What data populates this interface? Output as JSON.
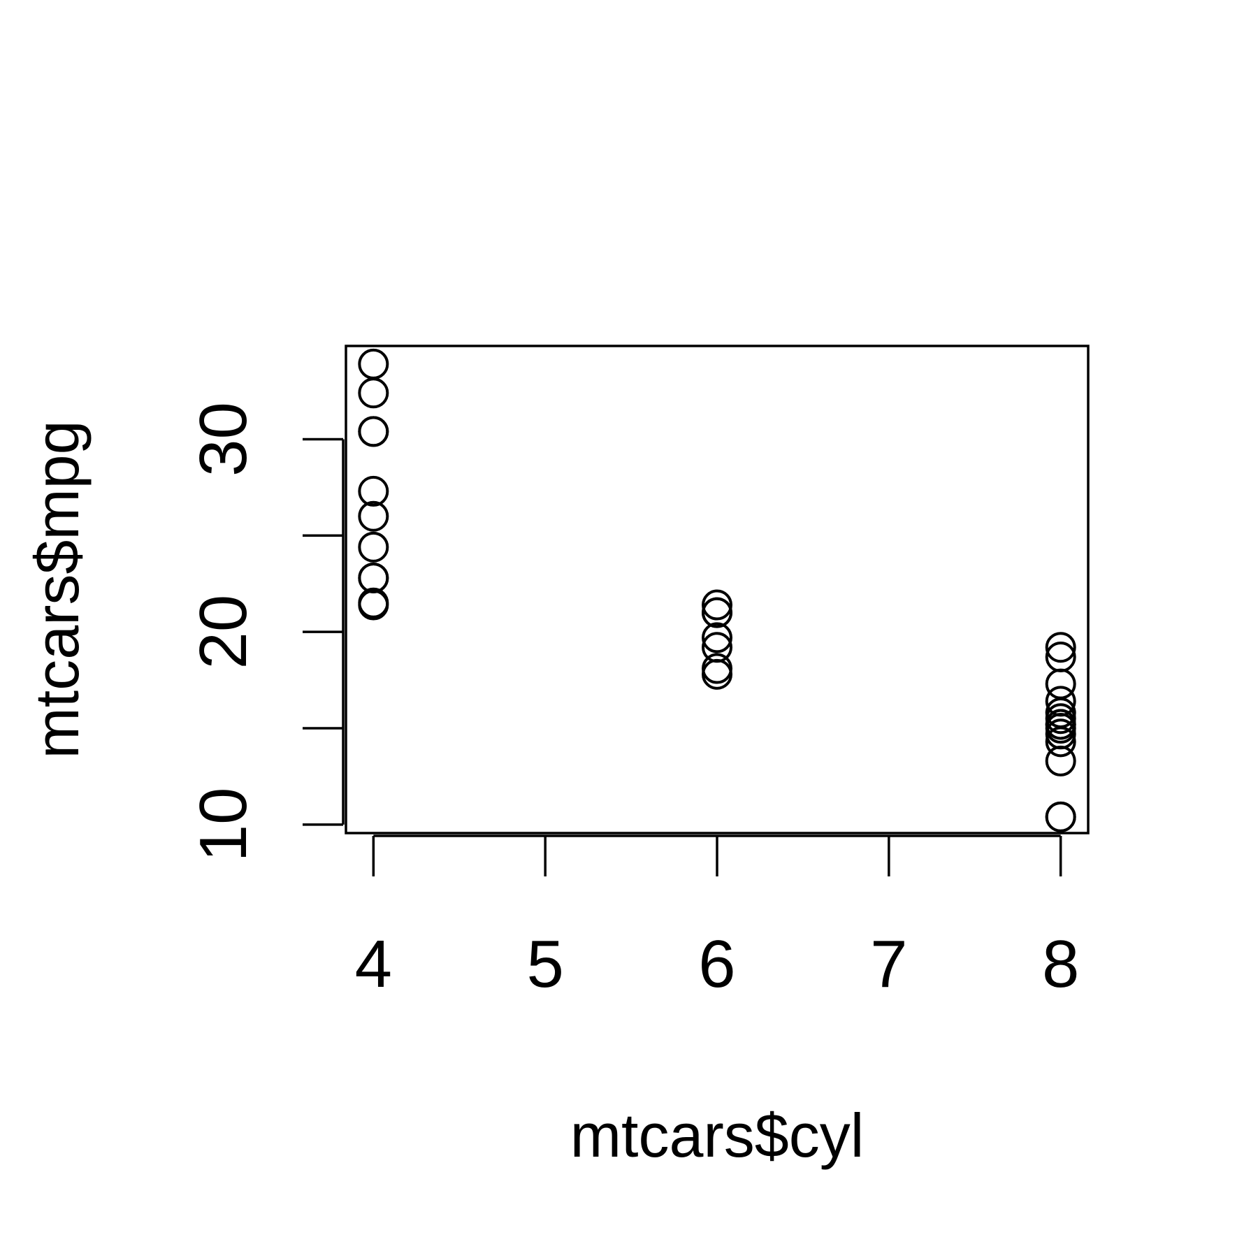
{
  "chart_data": {
    "type": "scatter",
    "title": "",
    "xlabel": "mtcars$cyl",
    "ylabel": "mtcars$mpg",
    "xlim": [
      3.84,
      8.16
    ],
    "ylim": [
      9.56,
      34.84
    ],
    "xticks": [
      4,
      5,
      6,
      7,
      8
    ],
    "yticks": [
      10,
      15,
      20,
      25,
      30
    ],
    "ytick_labels": [
      "10",
      "",
      "20",
      "",
      "30"
    ],
    "grid": false,
    "legend": "none",
    "marker": "open-circle",
    "colors": {
      "ink": "#000000",
      "background": "#ffffff"
    },
    "series": [
      {
        "x": [
          6,
          6,
          4,
          6,
          8,
          6,
          8,
          4,
          4,
          6,
          6,
          8,
          8,
          8,
          8,
          8,
          8,
          4,
          4,
          4,
          4,
          8,
          8,
          8,
          8,
          4,
          4,
          4,
          8,
          6,
          8,
          4
        ],
        "y": [
          21.0,
          21.0,
          22.8,
          21.4,
          18.7,
          18.1,
          14.3,
          24.4,
          22.8,
          19.2,
          17.8,
          16.4,
          17.3,
          15.2,
          10.4,
          10.4,
          14.7,
          32.4,
          30.4,
          33.9,
          21.5,
          15.5,
          15.2,
          13.3,
          19.2,
          27.3,
          26.0,
          30.4,
          15.8,
          19.7,
          15.0,
          21.4
        ]
      }
    ]
  }
}
